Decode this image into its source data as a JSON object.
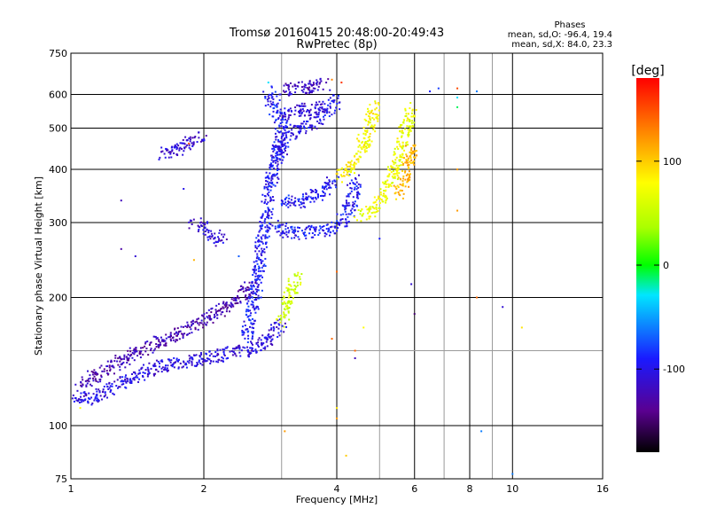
{
  "chart_data": {
    "type": "scatter",
    "title": "Tromsø 20160415 20:48:00-20:49:43",
    "subtitle": "RwPretec (8p)",
    "xlabel": "Frequency [MHz]",
    "ylabel": "Stationary phase Virtual Height [km]",
    "x_scale": "log",
    "y_scale": "log",
    "xlim": [
      1,
      16
    ],
    "ylim": [
      75,
      750
    ],
    "x_ticks": [
      "1",
      "2",
      "4",
      "6",
      "8",
      "10",
      "16"
    ],
    "y_ticks": [
      "75",
      "100",
      "200",
      "300",
      "400",
      "500",
      "600",
      "750"
    ],
    "grid": true,
    "stats": {
      "heading": "Phases",
      "o_line": "mean, sd,O: -96.4, 19.4",
      "x_line": "mean, sd,X: 84.0, 23.3"
    },
    "colorbar": {
      "label": "[deg]",
      "ticks": [
        "100",
        "0",
        "-100"
      ],
      "range": [
        -180,
        180
      ]
    },
    "traces": [
      {
        "points": [
          [
            1.0,
            118
          ],
          [
            1.1,
            115
          ],
          [
            1.2,
            120
          ],
          [
            1.35,
            128
          ],
          [
            1.5,
            135
          ],
          [
            1.7,
            140
          ],
          [
            1.9,
            142
          ],
          [
            2.1,
            145
          ],
          [
            2.3,
            148
          ],
          [
            2.5,
            150
          ],
          [
            2.7,
            155
          ],
          [
            2.9,
            165
          ],
          [
            3.0,
            175
          ]
        ],
        "phase": -105
      },
      {
        "points": [
          [
            1.05,
            125
          ],
          [
            1.2,
            135
          ],
          [
            1.4,
            148
          ],
          [
            1.6,
            158
          ],
          [
            1.8,
            168
          ],
          [
            2.0,
            178
          ],
          [
            2.2,
            188
          ],
          [
            2.4,
            200
          ],
          [
            2.6,
            215
          ]
        ],
        "phase": -125
      },
      {
        "points": [
          [
            2.5,
            160
          ],
          [
            2.55,
            180
          ],
          [
            2.6,
            200
          ],
          [
            2.65,
            225
          ],
          [
            2.7,
            260
          ],
          [
            2.75,
            300
          ],
          [
            2.8,
            340
          ],
          [
            2.85,
            380
          ],
          [
            2.9,
            420
          ],
          [
            2.95,
            460
          ],
          [
            3.0,
            500
          ],
          [
            2.95,
            540
          ],
          [
            2.85,
            580
          ],
          [
            2.8,
            610
          ]
        ],
        "phase": -95
      },
      {
        "points": [
          [
            3.0,
            175
          ],
          [
            3.05,
            185
          ],
          [
            3.1,
            195
          ],
          [
            3.15,
            205
          ],
          [
            3.2,
            215
          ],
          [
            3.25,
            225
          ]
        ],
        "phase": 55
      },
      {
        "points": [
          [
            2.9,
            300
          ],
          [
            3.1,
            285
          ],
          [
            3.3,
            283
          ],
          [
            3.6,
            286
          ],
          [
            3.9,
            290
          ],
          [
            4.1,
            300
          ],
          [
            4.25,
            320
          ],
          [
            4.35,
            345
          ],
          [
            4.4,
            370
          ],
          [
            4.35,
            380
          ]
        ],
        "phase": -95
      },
      {
        "points": [
          [
            3.0,
            340
          ],
          [
            3.2,
            330
          ],
          [
            3.5,
            345
          ],
          [
            3.8,
            360
          ],
          [
            4.0,
            380
          ]
        ],
        "phase": -95
      },
      {
        "points": [
          [
            2.9,
            420
          ],
          [
            3.0,
            445
          ],
          [
            3.1,
            470
          ],
          [
            3.2,
            490
          ],
          [
            3.3,
            500
          ],
          [
            3.45,
            510
          ],
          [
            3.6,
            525
          ],
          [
            3.75,
            540
          ],
          [
            3.9,
            560
          ],
          [
            4.0,
            590
          ]
        ],
        "phase": -100
      },
      {
        "points": [
          [
            3.0,
            540
          ],
          [
            3.2,
            550
          ],
          [
            3.5,
            555
          ],
          [
            3.7,
            560
          ]
        ],
        "phase": -110
      },
      {
        "points": [
          [
            3.0,
            615
          ],
          [
            3.2,
            620
          ],
          [
            3.5,
            625
          ],
          [
            3.8,
            635
          ]
        ],
        "phase": -120
      },
      {
        "points": [
          [
            4.0,
            385
          ],
          [
            4.2,
            395
          ],
          [
            4.4,
            420
          ],
          [
            4.6,
            460
          ],
          [
            4.8,
            520
          ],
          [
            4.9,
            570
          ]
        ],
        "phase": 80
      },
      {
        "points": [
          [
            4.5,
            310
          ],
          [
            4.8,
            320
          ],
          [
            5.0,
            335
          ],
          [
            5.2,
            360
          ],
          [
            5.4,
            400
          ],
          [
            5.6,
            450
          ],
          [
            5.8,
            520
          ],
          [
            5.9,
            560
          ]
        ],
        "phase": 70
      },
      {
        "points": [
          [
            5.5,
            350
          ],
          [
            5.7,
            380
          ],
          [
            5.85,
            420
          ],
          [
            5.95,
            460
          ]
        ],
        "phase": 110
      },
      {
        "points": [
          [
            1.6,
            435
          ],
          [
            1.7,
            440
          ],
          [
            1.8,
            450
          ],
          [
            1.9,
            470
          ],
          [
            2.0,
            480
          ]
        ],
        "phase": -110
      },
      {
        "points": [
          [
            1.9,
            300
          ],
          [
            2.0,
            290
          ],
          [
            2.1,
            280
          ],
          [
            2.2,
            270
          ]
        ],
        "phase": -110
      }
    ],
    "scatter_points": [
      {
        "x": 7.5,
        "y": 620,
        "phase": 150
      },
      {
        "x": 7.5,
        "y": 590,
        "phase": -30
      },
      {
        "x": 7.5,
        "y": 560,
        "phase": -10
      },
      {
        "x": 7.5,
        "y": 400,
        "phase": 120
      },
      {
        "x": 7.5,
        "y": 320,
        "phase": 120
      },
      {
        "x": 8.3,
        "y": 610,
        "phase": -60
      },
      {
        "x": 8.3,
        "y": 200,
        "phase": 140
      },
      {
        "x": 9.5,
        "y": 190,
        "phase": -110
      },
      {
        "x": 8.5,
        "y": 97,
        "phase": -60
      },
      {
        "x": 10.5,
        "y": 170,
        "phase": 90
      },
      {
        "x": 10.0,
        "y": 77,
        "phase": -60
      },
      {
        "x": 5.9,
        "y": 215,
        "phase": -110
      },
      {
        "x": 6.0,
        "y": 183,
        "phase": -150
      },
      {
        "x": 4.0,
        "y": 230,
        "phase": 140
      },
      {
        "x": 4.4,
        "y": 150,
        "phase": 140
      },
      {
        "x": 4.4,
        "y": 144,
        "phase": -120
      },
      {
        "x": 4.0,
        "y": 110,
        "phase": 90
      },
      {
        "x": 4.0,
        "y": 104,
        "phase": 120
      },
      {
        "x": 4.2,
        "y": 85,
        "phase": 100
      },
      {
        "x": 4.6,
        "y": 170,
        "phase": 80
      },
      {
        "x": 3.9,
        "y": 160,
        "phase": 140
      },
      {
        "x": 1.3,
        "y": 338,
        "phase": -120
      },
      {
        "x": 1.3,
        "y": 260,
        "phase": -130
      },
      {
        "x": 1.4,
        "y": 250,
        "phase": -110
      },
      {
        "x": 1.8,
        "y": 360,
        "phase": -100
      },
      {
        "x": 1.9,
        "y": 245,
        "phase": 110
      },
      {
        "x": 1.85,
        "y": 460,
        "phase": 150
      },
      {
        "x": 2.4,
        "y": 250,
        "phase": -70
      },
      {
        "x": 6.5,
        "y": 610,
        "phase": -90
      },
      {
        "x": 6.8,
        "y": 620,
        "phase": -80
      },
      {
        "x": 5.0,
        "y": 275,
        "phase": -90
      },
      {
        "x": 3.9,
        "y": 650,
        "phase": 130
      },
      {
        "x": 4.1,
        "y": 640,
        "phase": 160
      },
      {
        "x": 2.8,
        "y": 640,
        "phase": -30
      },
      {
        "x": 3.05,
        "y": 97,
        "phase": 120
      },
      {
        "x": 1.05,
        "y": 110,
        "phase": 80
      }
    ]
  }
}
